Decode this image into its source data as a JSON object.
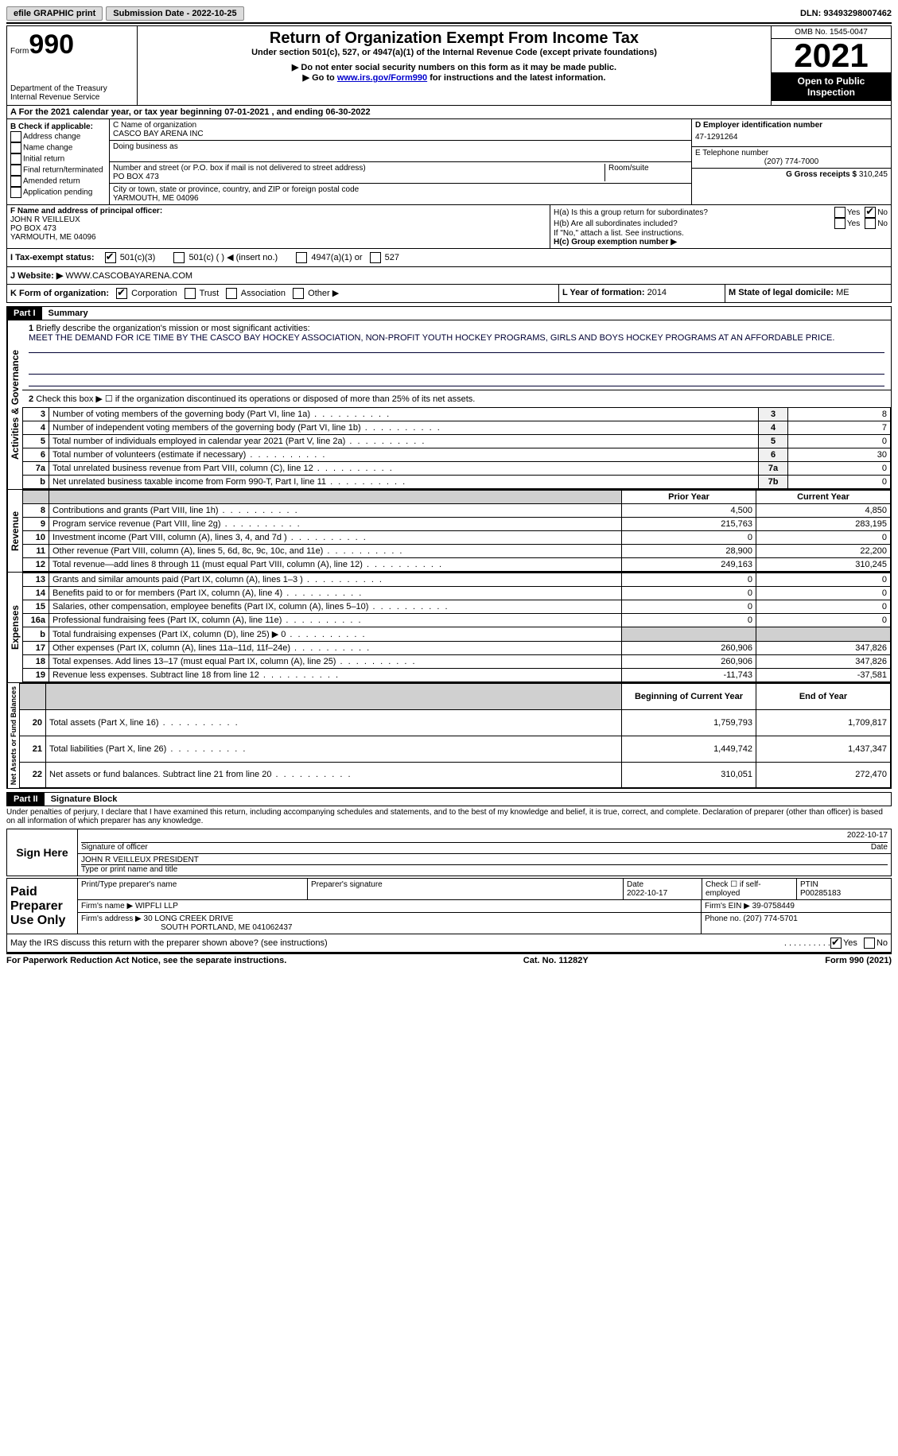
{
  "topbar": {
    "efile": "efile GRAPHIC print",
    "submission_label": "Submission Date - 2022-10-25",
    "dln_label": "DLN: 93493298007462"
  },
  "header": {
    "form_word": "Form",
    "form_num": "990",
    "dept": "Department of the Treasury\nInternal Revenue Service",
    "title": "Return of Organization Exempt From Income Tax",
    "subtitle": "Under section 501(c), 527, or 4947(a)(1) of the Internal Revenue Code (except private foundations)",
    "note1": "▶ Do not enter social security numbers on this form as it may be made public.",
    "note2_pre": "▶ Go to ",
    "note2_link": "www.irs.gov/Form990",
    "note2_post": " for instructions and the latest information.",
    "omb": "OMB No. 1545-0047",
    "year": "2021",
    "inspection": "Open to Public Inspection"
  },
  "lineA": "A For the 2021 calendar year, or tax year beginning 07-01-2021   , and ending 06-30-2022",
  "boxB": {
    "label": "B Check if applicable:",
    "opts": [
      "Address change",
      "Name change",
      "Initial return",
      "Final return/terminated",
      "Amended return",
      "Application pending"
    ]
  },
  "boxC": {
    "name_label": "C Name of organization",
    "name": "CASCO BAY ARENA INC",
    "dba_label": "Doing business as",
    "street_label": "Number and street (or P.O. box if mail is not delivered to street address)",
    "room_label": "Room/suite",
    "street": "PO BOX 473",
    "city_label": "City or town, state or province, country, and ZIP or foreign postal code",
    "city": "YARMOUTH, ME  04096"
  },
  "boxD": {
    "label": "D Employer identification number",
    "value": "47-1291264"
  },
  "boxE": {
    "label": "E Telephone number",
    "value": "(207) 774-7000"
  },
  "boxG": {
    "label": "G Gross receipts $",
    "value": "310,245"
  },
  "boxF": {
    "label": "F Name and address of principal officer:",
    "name": "JOHN R VEILLEUX",
    "addr1": "PO BOX 473",
    "addr2": "YARMOUTH, ME  04096"
  },
  "boxH": {
    "a_label": "H(a)  Is this a group return for subordinates?",
    "b_label": "H(b)  Are all subordinates included?",
    "b_note": "If \"No,\" attach a list. See instructions.",
    "c_label": "H(c)  Group exemption number ▶",
    "yes": "Yes",
    "no": "No"
  },
  "boxI": {
    "label": "I   Tax-exempt status:",
    "opt1": "501(c)(3)",
    "opt2": "501(c) (  ) ◀ (insert no.)",
    "opt3": "4947(a)(1) or",
    "opt4": "527"
  },
  "boxJ": {
    "label": "J   Website: ▶",
    "value": "WWW.CASCOBAYARENA.COM"
  },
  "boxK": {
    "label": "K Form of organization:",
    "opts": [
      "Corporation",
      "Trust",
      "Association",
      "Other ▶"
    ]
  },
  "boxL": {
    "label": "L Year of formation:",
    "value": "2014"
  },
  "boxM": {
    "label": "M State of legal domicile:",
    "value": "ME"
  },
  "part1": {
    "header": "Part I",
    "title": "Summary",
    "line1_label": "Briefly describe the organization's mission or most significant activities:",
    "mission": "MEET THE DEMAND FOR ICE TIME BY THE CASCO BAY HOCKEY ASSOCIATION, NON-PROFIT YOUTH HOCKEY PROGRAMS, GIRLS AND BOYS HOCKEY PROGRAMS AT AN AFFORDABLE PRICE.",
    "line2": "Check this box ▶ ☐  if the organization discontinued its operations or disposed of more than 25% of its net assets.",
    "sidebar_activities": "Activities & Governance",
    "sidebar_revenue": "Revenue",
    "sidebar_expenses": "Expenses",
    "sidebar_netassets": "Net Assets or Fund Balances",
    "col_prior": "Prior Year",
    "col_current": "Current Year",
    "col_begin": "Beginning of Current Year",
    "col_end": "End of Year",
    "rows_gov": [
      {
        "n": "3",
        "d": "Number of voting members of the governing body (Part VI, line 1a)",
        "box": "3",
        "v": "8"
      },
      {
        "n": "4",
        "d": "Number of independent voting members of the governing body (Part VI, line 1b)",
        "box": "4",
        "v": "7"
      },
      {
        "n": "5",
        "d": "Total number of individuals employed in calendar year 2021 (Part V, line 2a)",
        "box": "5",
        "v": "0"
      },
      {
        "n": "6",
        "d": "Total number of volunteers (estimate if necessary)",
        "box": "6",
        "v": "30"
      },
      {
        "n": "7a",
        "d": "Total unrelated business revenue from Part VIII, column (C), line 12",
        "box": "7a",
        "v": "0"
      },
      {
        "n": "b",
        "d": "Net unrelated business taxable income from Form 990-T, Part I, line 11",
        "box": "7b",
        "v": "0"
      }
    ],
    "rows_rev": [
      {
        "n": "8",
        "d": "Contributions and grants (Part VIII, line 1h)",
        "p": "4,500",
        "c": "4,850"
      },
      {
        "n": "9",
        "d": "Program service revenue (Part VIII, line 2g)",
        "p": "215,763",
        "c": "283,195"
      },
      {
        "n": "10",
        "d": "Investment income (Part VIII, column (A), lines 3, 4, and 7d )",
        "p": "0",
        "c": "0"
      },
      {
        "n": "11",
        "d": "Other revenue (Part VIII, column (A), lines 5, 6d, 8c, 9c, 10c, and 11e)",
        "p": "28,900",
        "c": "22,200"
      },
      {
        "n": "12",
        "d": "Total revenue—add lines 8 through 11 (must equal Part VIII, column (A), line 12)",
        "p": "249,163",
        "c": "310,245"
      }
    ],
    "rows_exp": [
      {
        "n": "13",
        "d": "Grants and similar amounts paid (Part IX, column (A), lines 1–3 )",
        "p": "0",
        "c": "0"
      },
      {
        "n": "14",
        "d": "Benefits paid to or for members (Part IX, column (A), line 4)",
        "p": "0",
        "c": "0"
      },
      {
        "n": "15",
        "d": "Salaries, other compensation, employee benefits (Part IX, column (A), lines 5–10)",
        "p": "0",
        "c": "0"
      },
      {
        "n": "16a",
        "d": "Professional fundraising fees (Part IX, column (A), line 11e)",
        "p": "0",
        "c": "0"
      },
      {
        "n": "b",
        "d": "Total fundraising expenses (Part IX, column (D), line 25) ▶ 0",
        "p": "",
        "c": "",
        "gray": true
      },
      {
        "n": "17",
        "d": "Other expenses (Part IX, column (A), lines 11a–11d, 11f–24e)",
        "p": "260,906",
        "c": "347,826"
      },
      {
        "n": "18",
        "d": "Total expenses. Add lines 13–17 (must equal Part IX, column (A), line 25)",
        "p": "260,906",
        "c": "347,826"
      },
      {
        "n": "19",
        "d": "Revenue less expenses. Subtract line 18 from line 12",
        "p": "-11,743",
        "c": "-37,581"
      }
    ],
    "rows_net": [
      {
        "n": "20",
        "d": "Total assets (Part X, line 16)",
        "p": "1,759,793",
        "c": "1,709,817"
      },
      {
        "n": "21",
        "d": "Total liabilities (Part X, line 26)",
        "p": "1,449,742",
        "c": "1,437,347"
      },
      {
        "n": "22",
        "d": "Net assets or fund balances. Subtract line 21 from line 20",
        "p": "310,051",
        "c": "272,470"
      }
    ]
  },
  "part2": {
    "header": "Part II",
    "title": "Signature Block",
    "perjury": "Under penalties of perjury, I declare that I have examined this return, including accompanying schedules and statements, and to the best of my knowledge and belief, it is true, correct, and complete. Declaration of preparer (other than officer) is based on all information of which preparer has any knowledge.",
    "sign_here": "Sign Here",
    "sig_officer": "Signature of officer",
    "date": "Date",
    "sig_date": "2022-10-17",
    "name_title_label": "Type or print name and title",
    "name_title": "JOHN R VEILLEUX  PRESIDENT",
    "paid_prep": "Paid Preparer Use Only",
    "prep_name_label": "Print/Type preparer's name",
    "prep_sig_label": "Preparer's signature",
    "prep_date_label": "Date",
    "prep_date": "2022-10-17",
    "check_self": "Check ☐ if self-employed",
    "ptin_label": "PTIN",
    "ptin": "P00285183",
    "firm_name_label": "Firm's name    ▶",
    "firm_name": "WIPFLI LLP",
    "firm_ein_label": "Firm's EIN ▶",
    "firm_ein": "39-0758449",
    "firm_addr_label": "Firm's address ▶",
    "firm_addr1": "30 LONG CREEK DRIVE",
    "firm_addr2": "SOUTH PORTLAND, ME  041062437",
    "firm_phone_label": "Phone no.",
    "firm_phone": "(207) 774-5701",
    "discuss": "May the IRS discuss this return with the preparer shown above? (see instructions)"
  },
  "footer": {
    "left": "For Paperwork Reduction Act Notice, see the separate instructions.",
    "center": "Cat. No. 11282Y",
    "right": "Form 990 (2021)"
  }
}
